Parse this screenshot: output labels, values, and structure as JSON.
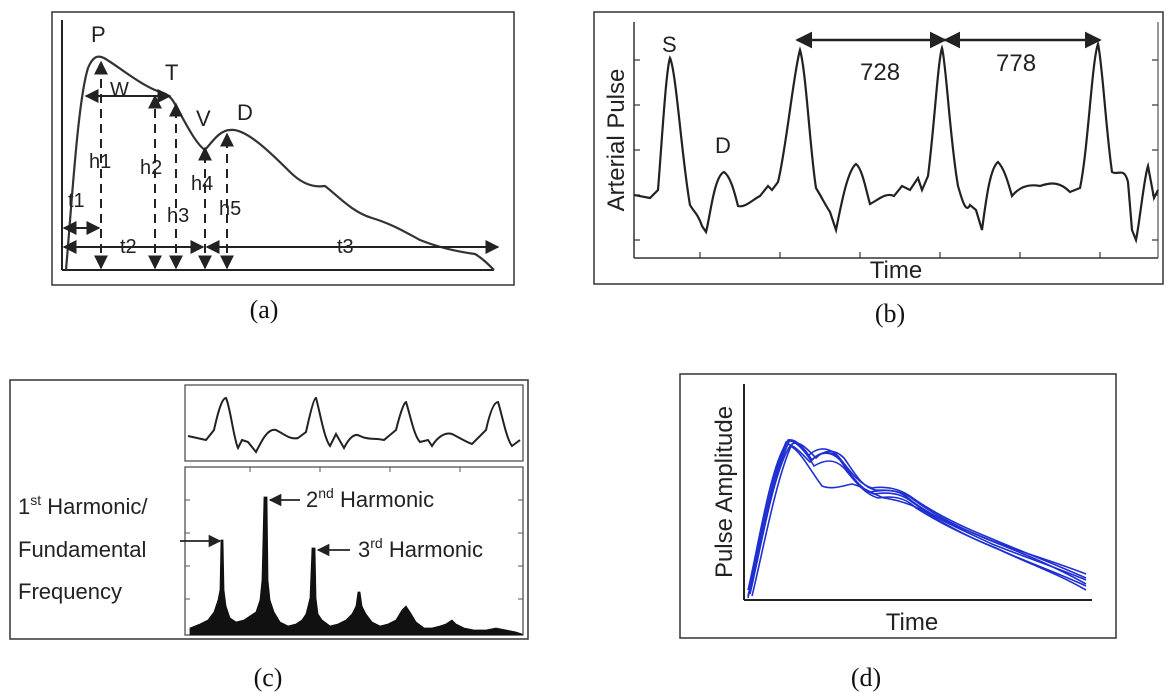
{
  "panel_a": {
    "labels": {
      "P": "P",
      "T": "T",
      "V": "V",
      "D": "D",
      "W": "W",
      "h1": "h1",
      "h2": "h2",
      "h3": "h3",
      "h4": "h4",
      "h5": "h5",
      "t1": "t1",
      "t2": "t2",
      "t3": "t3"
    },
    "caption": "(a)"
  },
  "panel_b": {
    "ylabel": "Arterial Pulse",
    "xlabel": "Time",
    "peak_label_s": "S",
    "peak_label_d": "D",
    "interval_1": "728",
    "interval_2": "778",
    "caption": "(b)"
  },
  "panel_c": {
    "harmonic_1_line1_main": "1",
    "harmonic_1_line1_sup": "st",
    "harmonic_1_line1_rest": " Harmonic/",
    "harmonic_1_line2": "Fundamental",
    "harmonic_1_line3": "Frequency",
    "harmonic_2_main": "2",
    "harmonic_2_sup": "nd",
    "harmonic_2_rest": " Harmonic",
    "harmonic_3_main": "3",
    "harmonic_3_sup": "rd",
    "harmonic_3_rest": " Harmonic",
    "caption": "(c)"
  },
  "panel_d": {
    "ylabel": "Pulse Amplitude",
    "xlabel": "Time",
    "trace_color": "#1f2fd0",
    "caption": "(d)"
  },
  "colors": {
    "ink": "#222222",
    "frame": "#333333",
    "trace_blue": "#1f2fd0"
  }
}
